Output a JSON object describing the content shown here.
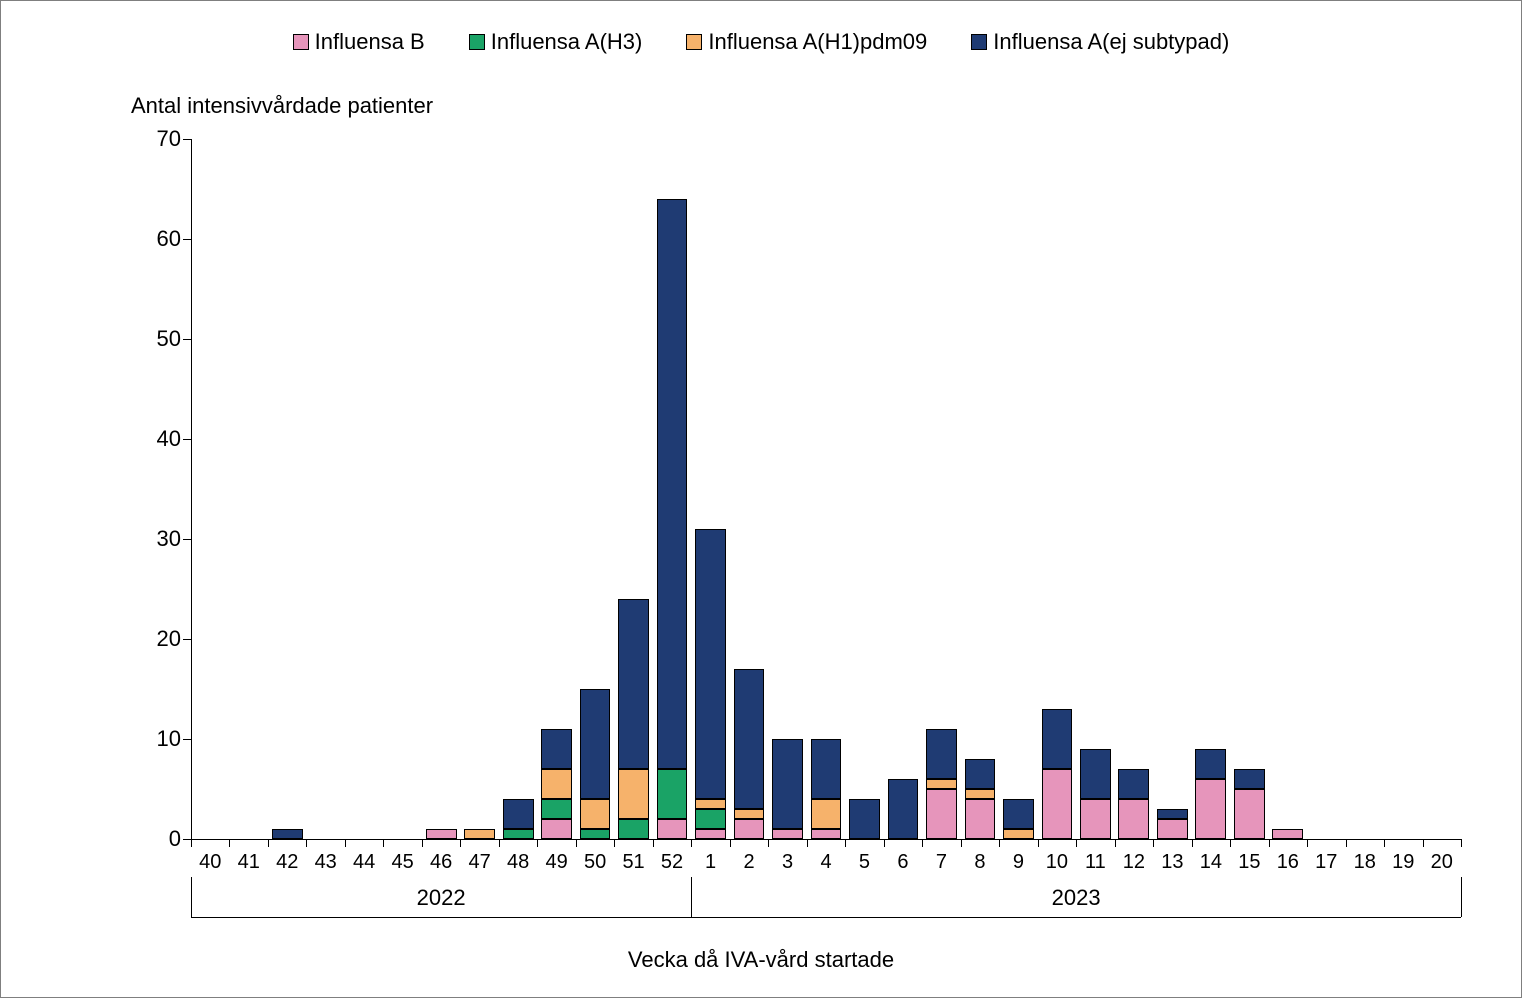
{
  "chart": {
    "type": "stacked-bar",
    "y_title": "Antal intensivvårdade patienter",
    "x_title": "Vecka då IVA-vård startade",
    "background_color": "#ffffff",
    "border_color": "#7f7f7f",
    "axis_color": "#000000",
    "text_color": "#000000",
    "label_fontsize": 22,
    "tick_fontsize": 20,
    "ylim": [
      0,
      70
    ],
    "ytick_step": 10,
    "yticks": [
      0,
      10,
      20,
      30,
      40,
      50,
      60,
      70
    ],
    "bar_width_ratio": 0.8,
    "series": [
      {
        "key": "b",
        "label": "Influensa B",
        "color": "#e695bb",
        "border": "#000000"
      },
      {
        "key": "a_h3",
        "label": "Influensa A(H3)",
        "color": "#1aa366",
        "border": "#000000"
      },
      {
        "key": "a_h1",
        "label": "Influensa A(H1)pdm09",
        "color": "#f6b26b",
        "border": "#000000"
      },
      {
        "key": "a_ej",
        "label": "Influensa A(ej subtypad)",
        "color": "#1f3b73",
        "border": "#000000"
      }
    ],
    "year_groups": [
      {
        "label": "2022",
        "start_index": 0,
        "end_index": 12
      },
      {
        "label": "2023",
        "start_index": 13,
        "end_index": 32
      }
    ],
    "categories": [
      "40",
      "41",
      "42",
      "43",
      "44",
      "45",
      "46",
      "47",
      "48",
      "49",
      "50",
      "51",
      "52",
      "1",
      "2",
      "3",
      "4",
      "5",
      "6",
      "7",
      "8",
      "9",
      "10",
      "11",
      "12",
      "13",
      "14",
      "15",
      "16",
      "17",
      "18",
      "19",
      "20"
    ],
    "data": [
      {
        "week": "40",
        "b": 0,
        "a_h3": 0,
        "a_h1": 0,
        "a_ej": 0
      },
      {
        "week": "41",
        "b": 0,
        "a_h3": 0,
        "a_h1": 0,
        "a_ej": 0
      },
      {
        "week": "42",
        "b": 0,
        "a_h3": 0,
        "a_h1": 0,
        "a_ej": 1
      },
      {
        "week": "43",
        "b": 0,
        "a_h3": 0,
        "a_h1": 0,
        "a_ej": 0
      },
      {
        "week": "44",
        "b": 0,
        "a_h3": 0,
        "a_h1": 0,
        "a_ej": 0
      },
      {
        "week": "45",
        "b": 0,
        "a_h3": 0,
        "a_h1": 0,
        "a_ej": 0
      },
      {
        "week": "46",
        "b": 1,
        "a_h3": 0,
        "a_h1": 0,
        "a_ej": 0
      },
      {
        "week": "47",
        "b": 0,
        "a_h3": 0,
        "a_h1": 1,
        "a_ej": 0
      },
      {
        "week": "48",
        "b": 0,
        "a_h3": 1,
        "a_h1": 0,
        "a_ej": 3
      },
      {
        "week": "49",
        "b": 2,
        "a_h3": 2,
        "a_h1": 3,
        "a_ej": 4
      },
      {
        "week": "50",
        "b": 0,
        "a_h3": 1,
        "a_h1": 3,
        "a_ej": 11
      },
      {
        "week": "51",
        "b": 0,
        "a_h3": 2,
        "a_h1": 5,
        "a_ej": 17
      },
      {
        "week": "52",
        "b": 2,
        "a_h3": 5,
        "a_h1": 0,
        "a_ej": 57
      },
      {
        "week": "1",
        "b": 1,
        "a_h3": 2,
        "a_h1": 1,
        "a_ej": 27
      },
      {
        "week": "2",
        "b": 2,
        "a_h3": 0,
        "a_h1": 1,
        "a_ej": 14
      },
      {
        "week": "3",
        "b": 1,
        "a_h3": 0,
        "a_h1": 0,
        "a_ej": 9
      },
      {
        "week": "4",
        "b": 1,
        "a_h3": 0,
        "a_h1": 3,
        "a_ej": 6
      },
      {
        "week": "5",
        "b": 0,
        "a_h3": 0,
        "a_h1": 0,
        "a_ej": 4
      },
      {
        "week": "6",
        "b": 0,
        "a_h3": 0,
        "a_h1": 0,
        "a_ej": 6
      },
      {
        "week": "7",
        "b": 5,
        "a_h3": 0,
        "a_h1": 1,
        "a_ej": 5
      },
      {
        "week": "8",
        "b": 4,
        "a_h3": 0,
        "a_h1": 1,
        "a_ej": 3
      },
      {
        "week": "9",
        "b": 0,
        "a_h3": 0,
        "a_h1": 1,
        "a_ej": 3
      },
      {
        "week": "10",
        "b": 7,
        "a_h3": 0,
        "a_h1": 0,
        "a_ej": 6
      },
      {
        "week": "11",
        "b": 4,
        "a_h3": 0,
        "a_h1": 0,
        "a_ej": 5
      },
      {
        "week": "12",
        "b": 4,
        "a_h3": 0,
        "a_h1": 0,
        "a_ej": 3
      },
      {
        "week": "13",
        "b": 2,
        "a_h3": 0,
        "a_h1": 0,
        "a_ej": 1
      },
      {
        "week": "14",
        "b": 6,
        "a_h3": 0,
        "a_h1": 0,
        "a_ej": 3
      },
      {
        "week": "15",
        "b": 5,
        "a_h3": 0,
        "a_h1": 0,
        "a_ej": 2
      },
      {
        "week": "16",
        "b": 1,
        "a_h3": 0,
        "a_h1": 0,
        "a_ej": 0
      },
      {
        "week": "17",
        "b": 0,
        "a_h3": 0,
        "a_h1": 0,
        "a_ej": 0
      },
      {
        "week": "18",
        "b": 0,
        "a_h3": 0,
        "a_h1": 0,
        "a_ej": 0
      },
      {
        "week": "19",
        "b": 0,
        "a_h3": 0,
        "a_h1": 0,
        "a_ej": 0
      },
      {
        "week": "20",
        "b": 0,
        "a_h3": 0,
        "a_h1": 0,
        "a_ej": 0
      }
    ]
  }
}
